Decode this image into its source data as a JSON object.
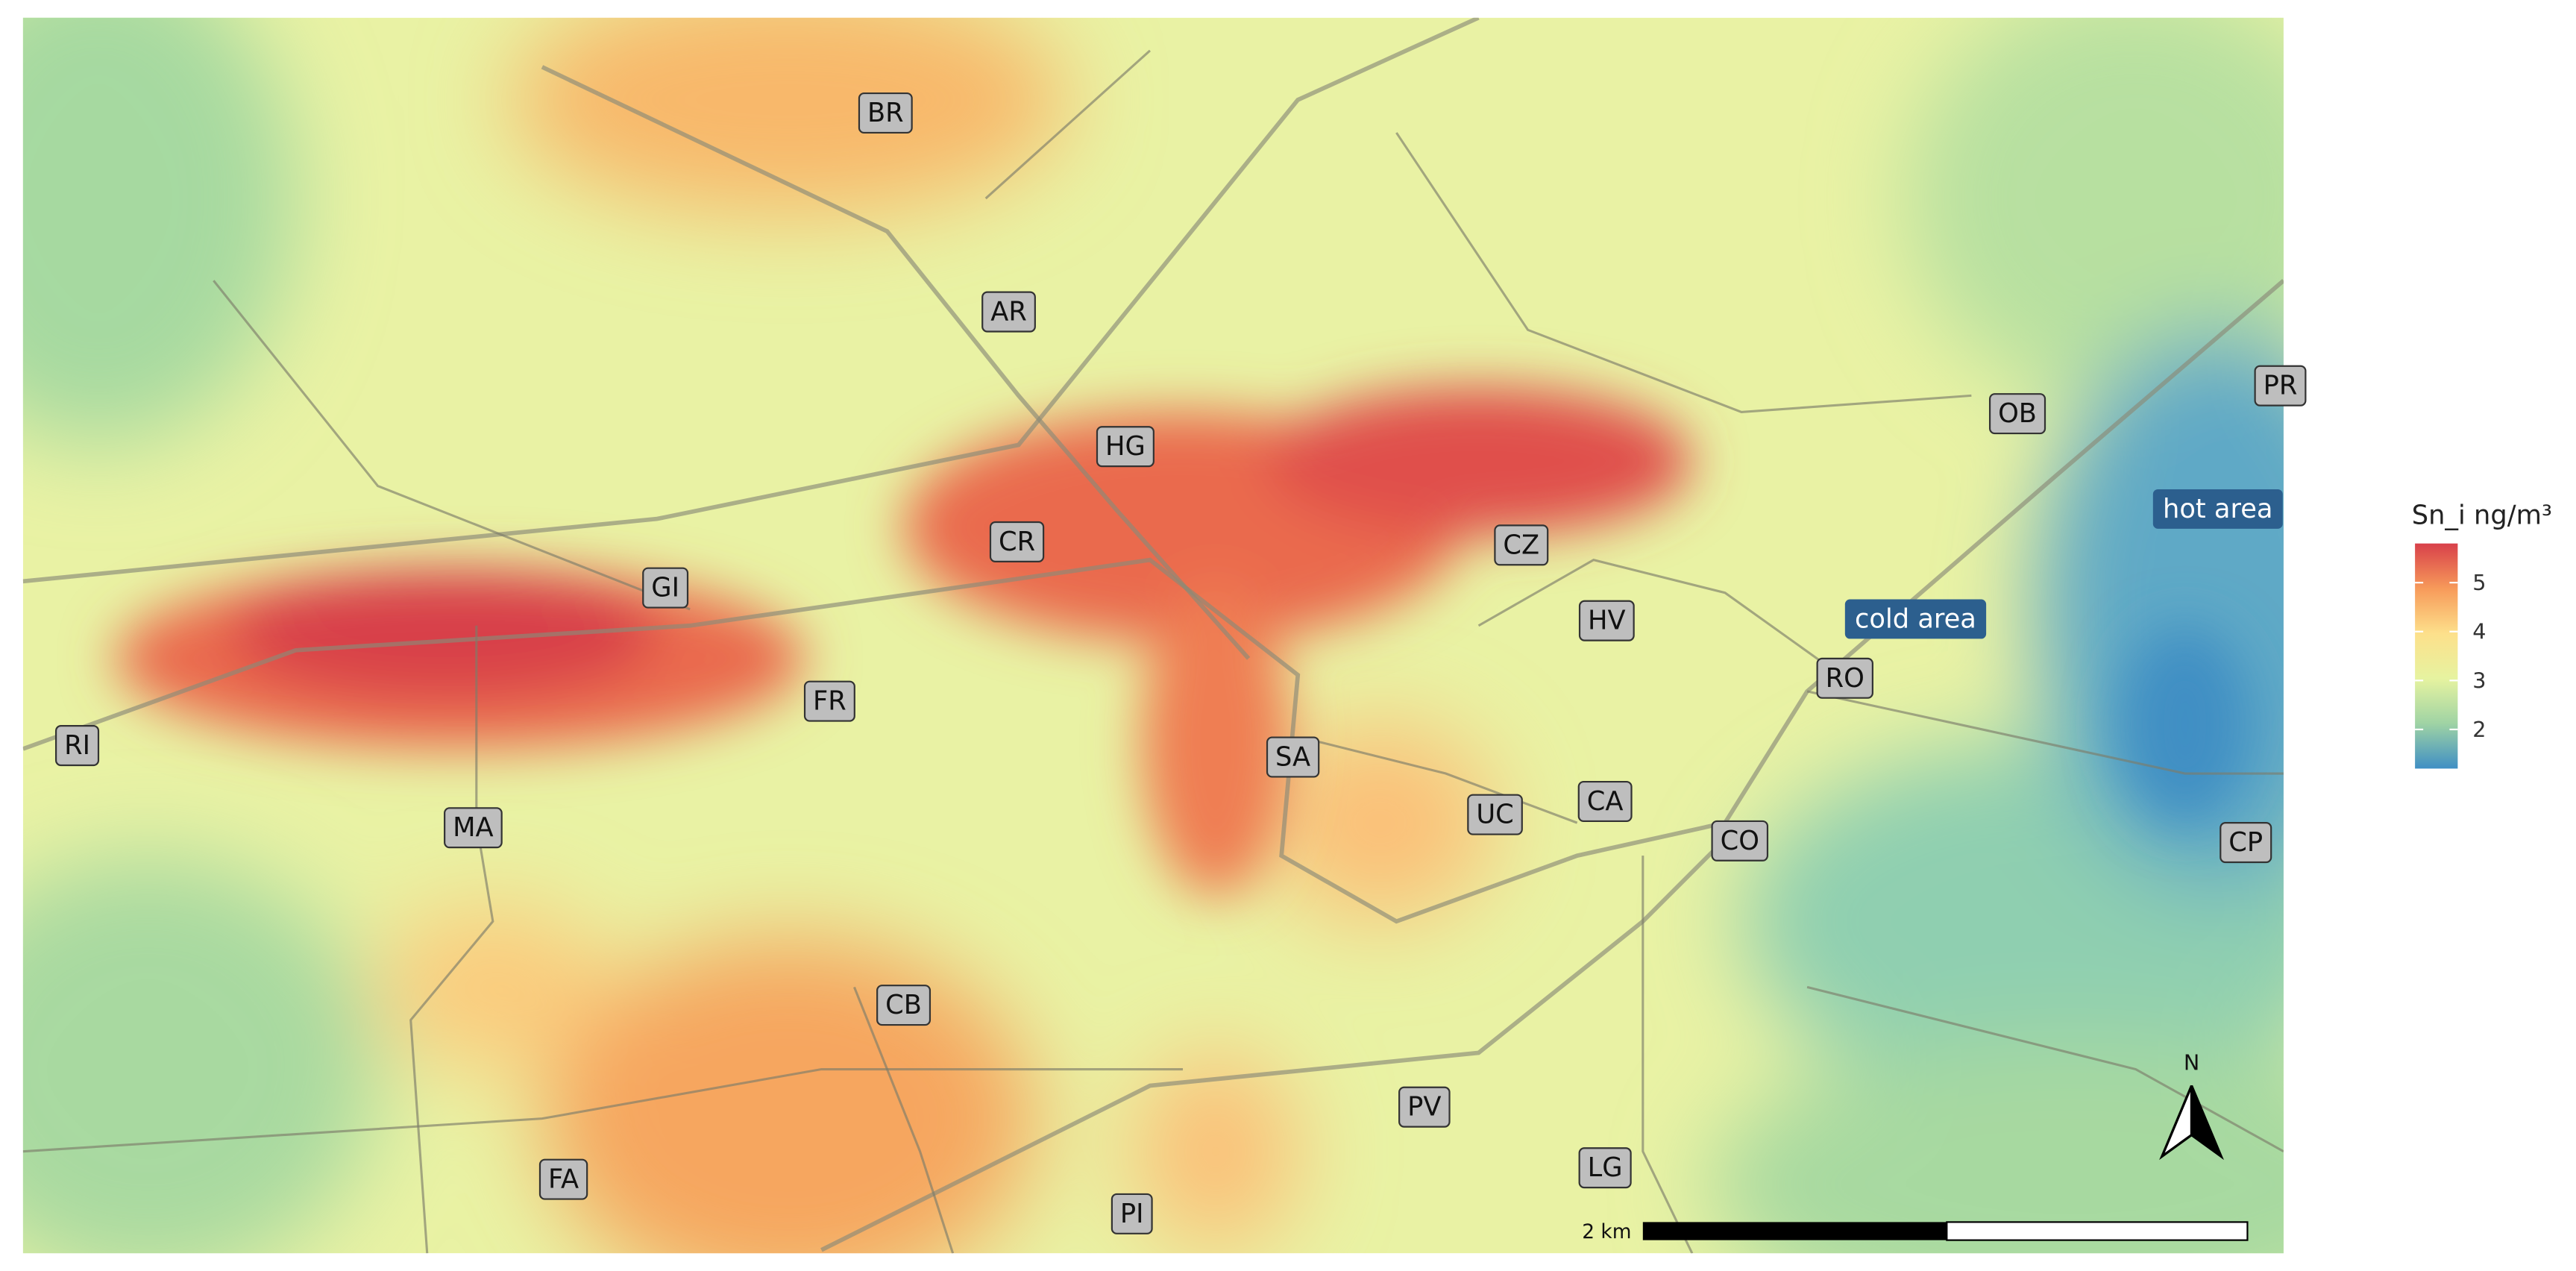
{
  "labels": [
    "BR",
    "AR",
    "HG",
    "CR",
    "GI",
    "FR",
    "RI",
    "MA",
    "SA",
    "CZ",
    "HV",
    "UC",
    "CA",
    "CO",
    "RO",
    "OB",
    "PR",
    "CP",
    "CB",
    "FA",
    "PI",
    "PV",
    "LG"
  ],
  "annotations": {
    "hot": "hot area",
    "cold": "cold area"
  },
  "legend": {
    "title": "Sn_i ng/m³",
    "range": [
      1.2,
      5.8
    ],
    "ticks": [
      2,
      3,
      4,
      5
    ]
  },
  "scale_bar": "2 km",
  "north": "N"
}
